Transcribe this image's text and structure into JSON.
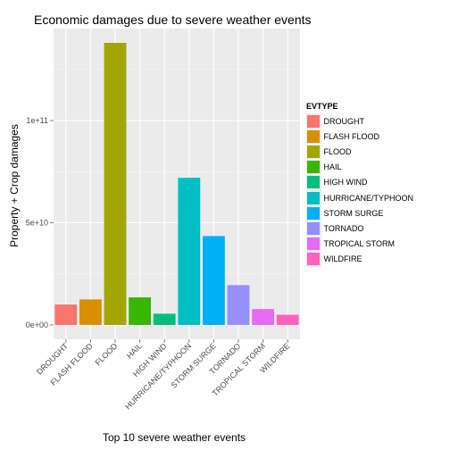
{
  "chart_data": {
    "type": "bar",
    "title": "Economic damages due to severe weather events",
    "xlabel": "Top 10 severe weather events",
    "ylabel": "Property + Crop damages",
    "categories": [
      "DROUGHT",
      "FLASH FLOOD",
      "FLOOD",
      "HAIL",
      "HIGH WIND",
      "HURRICANE/TYPHOON",
      "STORM SURGE",
      "TORNADO",
      "TROPICAL STORM",
      "WILDFIRE"
    ],
    "values": [
      10000000000,
      12500000000,
      138000000000,
      13500000000,
      5500000000,
      72000000000,
      43500000000,
      19500000000,
      7800000000,
      5000000000
    ],
    "colors": [
      "#F8766D",
      "#D89000",
      "#A3A500",
      "#39B600",
      "#00BF7D",
      "#00BFC4",
      "#00B0F6",
      "#9590FF",
      "#E76BF3",
      "#FF62BC"
    ],
    "ylim": [
      -7000000000,
      145000000000
    ],
    "yticks": [
      0,
      50000000000,
      100000000000
    ],
    "ytick_labels": [
      "0e+00",
      "5e+10",
      "1e+11"
    ],
    "legend": {
      "title": "EVTYPE",
      "position": "right",
      "labels": [
        "DROUGHT",
        "FLASH FLOOD",
        "FLOOD",
        "HAIL",
        "HIGH WIND",
        "HURRICANE/TYPHOON",
        "STORM SURGE",
        "TORNADO",
        "TROPICAL STORM",
        "WILDFIRE"
      ]
    },
    "grid": true,
    "panel_background": "#EBEBEB"
  }
}
